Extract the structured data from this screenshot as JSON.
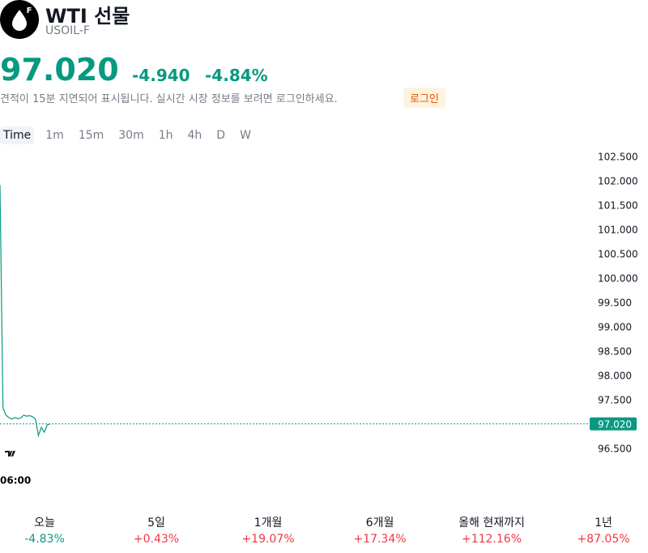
{
  "header": {
    "icon_letter": "F",
    "title": "WTI 선물",
    "symbol": "USOIL-F",
    "price": "97.020",
    "change": "-4.940",
    "change_pct": "-4.84%",
    "notice": "견적이 15분 지연되어 표시됩니다. 실시간 시장 정보를 보려면 로그인하세요.",
    "login": "로그인"
  },
  "intervals": [
    "Time",
    "1m",
    "15m",
    "30m",
    "1h",
    "4h",
    "D",
    "W"
  ],
  "chart_data": {
    "type": "line",
    "color": "#089981",
    "values": [
      101.93,
      97.35,
      97.2,
      97.15,
      97.12,
      97.15,
      97.13,
      97.14,
      97.2,
      97.18,
      97.19,
      97.17,
      97.12,
      96.78,
      96.95,
      96.85,
      97.0,
      97.02
    ],
    "ylim": [
      96.25,
      102.75
    ],
    "yticks": [
      {
        "value": 96.5,
        "label": "96.500"
      },
      {
        "value": 97,
        "label": "97.000"
      },
      {
        "value": 97.5,
        "label": "97.500"
      },
      {
        "value": 98,
        "label": "98.000"
      },
      {
        "value": 98.5,
        "label": "98.500"
      },
      {
        "value": 99,
        "label": "99.000"
      },
      {
        "value": 99.5,
        "label": "99.500"
      },
      {
        "value": 100,
        "label": "100.000"
      },
      {
        "value": 100.5,
        "label": "100.500"
      },
      {
        "value": 101,
        "label": "101.000"
      },
      {
        "value": 101.5,
        "label": "101.500"
      },
      {
        "value": 102,
        "label": "102.000"
      },
      {
        "value": 102.5,
        "label": "102.500"
      }
    ],
    "last": {
      "value": 97.02,
      "label": "97.020"
    },
    "xtick_label": "06:00"
  },
  "performance": [
    {
      "label": "오늘",
      "value": "-4.83%"
    },
    {
      "label": "5일",
      "value": "+0.43%"
    },
    {
      "label": "1개월",
      "value": "+19.07%"
    },
    {
      "label": "6개월",
      "value": "+17.34%"
    },
    {
      "label": "올해 현재까지",
      "value": "+112.16%"
    },
    {
      "label": "1년",
      "value": "+87.05%"
    }
  ]
}
